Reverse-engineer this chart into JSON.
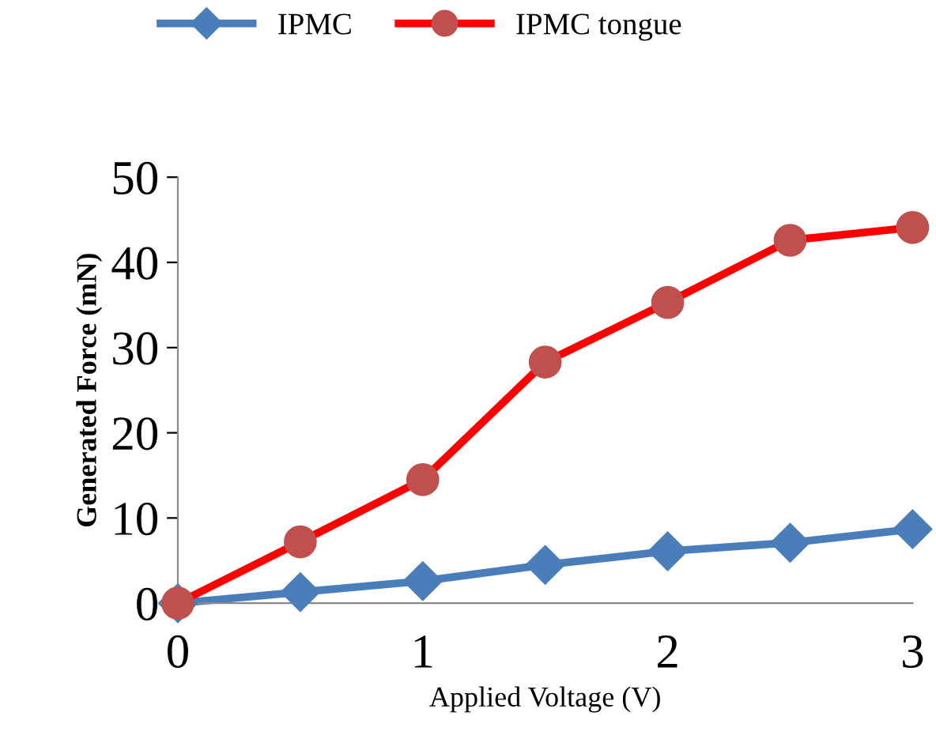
{
  "chart_data": {
    "type": "line",
    "xlabel": "Applied Voltage (V)",
    "ylabel": "Generated Force (mN)",
    "x": [
      0,
      0.5,
      1,
      1.5,
      2,
      2.5,
      3
    ],
    "series": [
      {
        "name": "IPMC",
        "color": "#4a7ebb",
        "marker": "diamond",
        "values": [
          0,
          1.3,
          2.6,
          4.5,
          6.1,
          7.1,
          8.7
        ]
      },
      {
        "name": "IPMC tongue",
        "color": "#ff0000",
        "colors": [
          "#c0504d",
          "#c0504d",
          "#c0504d",
          "#c0504d",
          "#c0504d",
          "#c0504d",
          "#c0504d"
        ],
        "marker": "circle",
        "values": [
          0,
          7.2,
          14.5,
          28.3,
          35.3,
          42.6,
          44.1
        ]
      }
    ],
    "xlim": [
      0,
      3
    ],
    "xticks": [
      0,
      1,
      2,
      3
    ],
    "ylim": [
      0,
      50
    ],
    "yticks": [
      0,
      10,
      20,
      30,
      40,
      50
    ],
    "grid": false,
    "legend": "top",
    "line_style": "solid"
  }
}
